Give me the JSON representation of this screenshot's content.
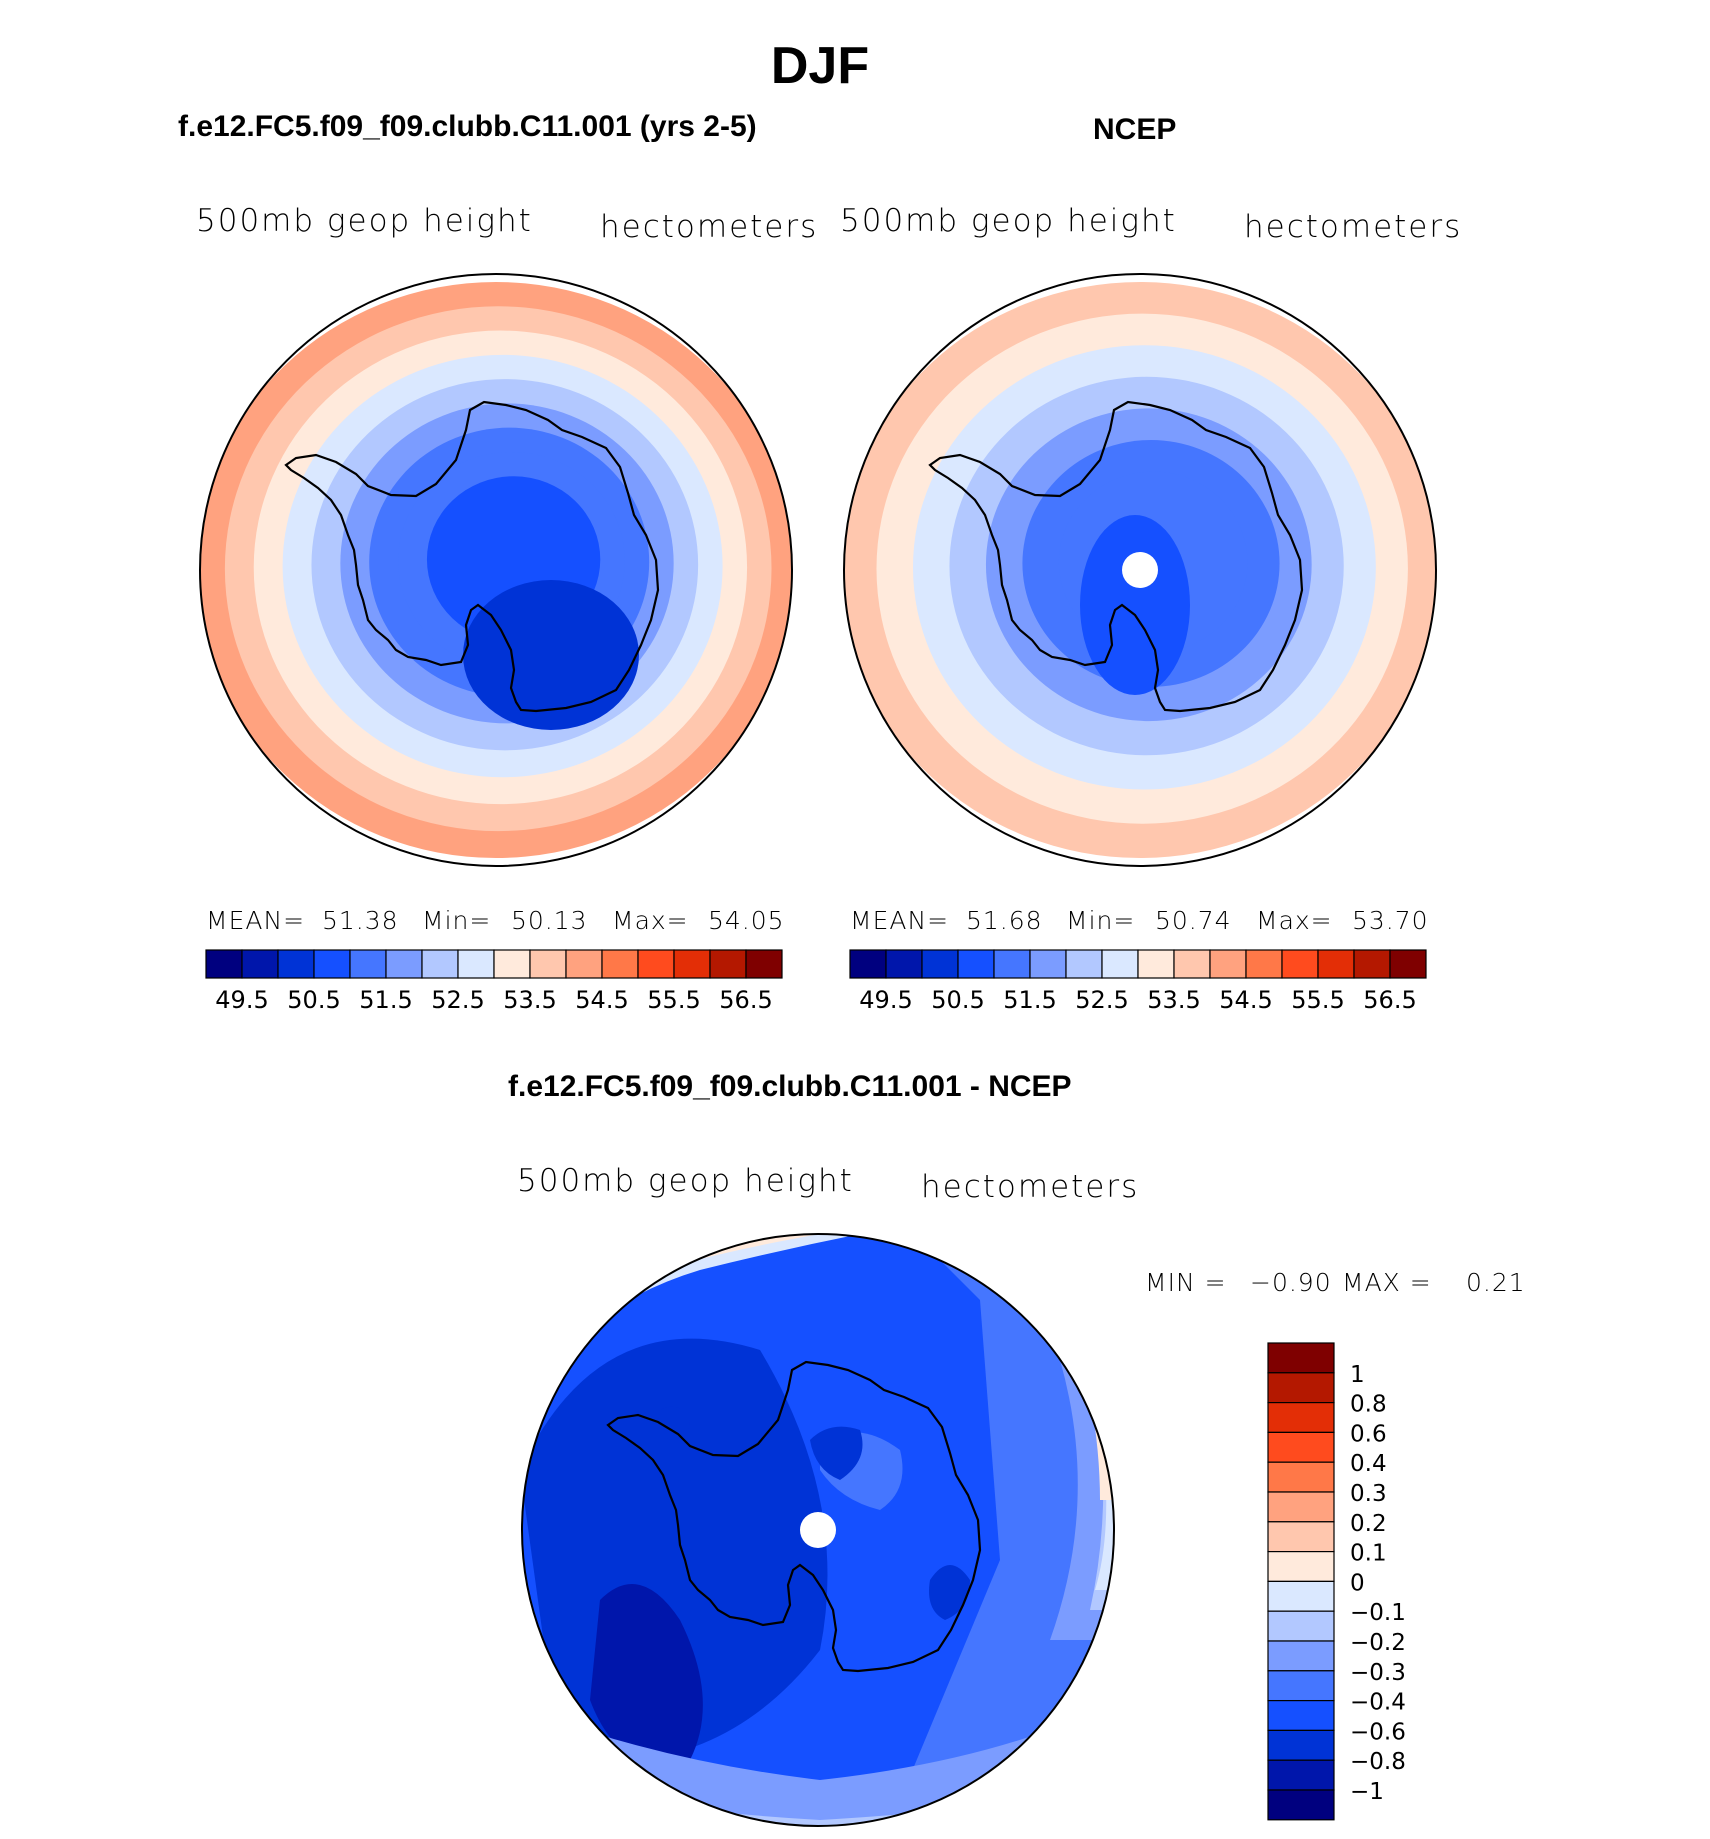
{
  "figure": {
    "title": "DJF"
  },
  "panels": [
    {
      "title": "f.e12.FC5.f09_f09.clubb.C11.001 (yrs 2-5)",
      "left_label": "500mb  geop  height",
      "right_label": "hectometers",
      "stats": {
        "mean_label": "MEAN=",
        "mean": "51.38",
        "min_label": "Min=",
        "min": "50.13",
        "max_label": "Max=",
        "max": "54.05"
      },
      "colorbar": {
        "labels": [
          "49.5",
          "50.5",
          "51.5",
          "52.5",
          "53.5",
          "54.5",
          "55.5",
          "56.5"
        ]
      },
      "field": {
        "levels_ring": [
          54.0,
          53.7,
          53.2,
          52.8,
          52.3,
          51.8,
          51.4,
          51.0,
          50.6
        ],
        "polar_marker": false
      }
    },
    {
      "title": "NCEP",
      "left_label": "500mb  geop  height",
      "right_label": "hectometers",
      "stats": {
        "mean_label": "MEAN=",
        "mean": "51.68",
        "min_label": "Min=",
        "min": "50.74",
        "max_label": "Max=",
        "max": "53.70"
      },
      "colorbar": {
        "labels": [
          "49.5",
          "50.5",
          "51.5",
          "52.5",
          "53.5",
          "54.5",
          "55.5",
          "56.5"
        ]
      },
      "field": {
        "levels_ring": [
          53.7,
          53.2,
          52.8,
          52.3,
          51.8,
          51.4,
          51.0
        ],
        "polar_marker": true
      }
    },
    {
      "title": "f.e12.FC5.f09_f09.clubb.C11.001 - NCEP",
      "left_label": "500mb  geop  height",
      "right_label": "hectometers",
      "stats": {
        "min_label": "MIN =",
        "min": "−0.90",
        "max_label": "MAX =",
        "max": "0.21"
      },
      "colorbar": {
        "labels": [
          "1",
          "0.8",
          "0.6",
          "0.4",
          "0.3",
          "0.2",
          "0.1",
          "0",
          "−0.1",
          "−0.2",
          "−0.3",
          "−0.4",
          "−0.6",
          "−0.8",
          "−1"
        ]
      },
      "field": {
        "polar_marker": true
      }
    }
  ],
  "colors": {
    "abs_scale": [
      "#00007f",
      "#0016ab",
      "#0033d6",
      "#1550ff",
      "#4576ff",
      "#7b9cff",
      "#b2c8ff",
      "#dae8ff",
      "#ffeadc",
      "#ffc7ae",
      "#ffa27f",
      "#ff7848",
      "#ff4b1e",
      "#e32e06",
      "#b41800",
      "#7f0000"
    ],
    "diff_scale": [
      "#7f0000",
      "#b41800",
      "#e32e06",
      "#ff4b1e",
      "#ff7848",
      "#ffa27f",
      "#ffc7ae",
      "#ffeadc",
      "#dae8ff",
      "#b2c8ff",
      "#7b9cff",
      "#4576ff",
      "#1550ff",
      "#0033d6",
      "#0016ab",
      "#00007f"
    ],
    "land_outline": "#000000"
  }
}
